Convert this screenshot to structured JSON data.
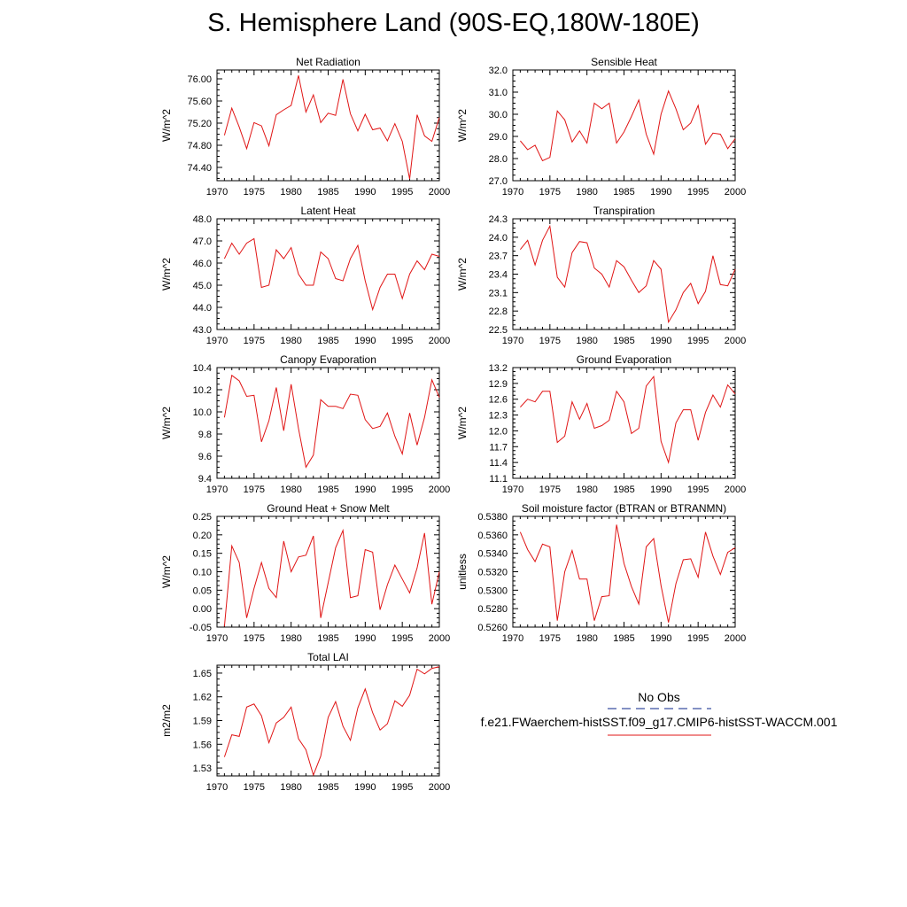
{
  "page": {
    "title": "S. Hemisphere Land (90S-EQ,180W-180E)"
  },
  "legend": {
    "obs_label": "No Obs",
    "case_label": "f.e21.FWaerchem-histSST.f09_g17.CMIP6-histSST-WACCM.001",
    "obs_color": "#3a4fa0",
    "case_color": "#e01515"
  },
  "chart_data": [
    {
      "type": "line",
      "title": "Net Radiation",
      "ylabel": "W/m^2",
      "xlim": [
        1970,
        2000
      ],
      "ylim": [
        74.16,
        76.16
      ],
      "yticks": [
        "74.40",
        "74.80",
        "75.20",
        "75.60",
        "76.00"
      ],
      "xticks": [
        "1970",
        "1975",
        "1980",
        "1985",
        "1990",
        "1995",
        "2000"
      ],
      "series": [
        {
          "x": [
            1971,
            1972,
            1973,
            1974,
            1975,
            1976,
            1977,
            1978,
            1979,
            1980,
            1981,
            1982,
            1983,
            1984,
            1985,
            1986,
            1987,
            1988,
            1989,
            1990,
            1991,
            1992,
            1993,
            1994,
            1995,
            1996,
            1997,
            1998,
            1999,
            2000
          ],
          "values": [
            74.98,
            75.47,
            75.13,
            74.74,
            75.21,
            75.15,
            74.79,
            75.35,
            75.44,
            75.52,
            76.06,
            75.4,
            75.71,
            75.21,
            75.38,
            75.34,
            75.99,
            75.37,
            75.06,
            75.36,
            75.08,
            75.11,
            74.88,
            75.19,
            74.87,
            74.19,
            75.35,
            74.97,
            74.87,
            75.3
          ]
        }
      ]
    },
    {
      "type": "line",
      "title": "Sensible Heat",
      "ylabel": "W/m^2",
      "xlim": [
        1970,
        2000
      ],
      "ylim": [
        27.0,
        32.0
      ],
      "yticks": [
        "27.0",
        "28.0",
        "29.0",
        "30.0",
        "31.0",
        "32.0"
      ],
      "xticks": [
        "1970",
        "1975",
        "1980",
        "1985",
        "1990",
        "1995",
        "2000"
      ],
      "series": [
        {
          "x": [
            1971,
            1972,
            1973,
            1974,
            1975,
            1976,
            1977,
            1978,
            1979,
            1980,
            1981,
            1982,
            1983,
            1984,
            1985,
            1986,
            1987,
            1988,
            1989,
            1990,
            1991,
            1992,
            1993,
            1994,
            1995,
            1996,
            1997,
            1998,
            1999,
            2000
          ],
          "values": [
            28.8,
            28.4,
            28.6,
            27.9,
            28.05,
            30.15,
            29.75,
            28.75,
            29.25,
            28.7,
            30.5,
            30.25,
            30.5,
            28.7,
            29.2,
            29.9,
            30.65,
            29.1,
            28.2,
            30.0,
            31.05,
            30.25,
            29.3,
            29.6,
            30.4,
            28.65,
            29.15,
            29.1,
            28.45,
            28.9
          ]
        }
      ]
    },
    {
      "type": "line",
      "title": "Latent Heat",
      "ylabel": "W/m^2",
      "xlim": [
        1970,
        2000
      ],
      "ylim": [
        43.0,
        48.0
      ],
      "yticks": [
        "43.0",
        "44.0",
        "45.0",
        "46.0",
        "47.0",
        "48.0"
      ],
      "xticks": [
        "1970",
        "1975",
        "1980",
        "1985",
        "1990",
        "1995",
        "2000"
      ],
      "series": [
        {
          "x": [
            1971,
            1972,
            1973,
            1974,
            1975,
            1976,
            1977,
            1978,
            1979,
            1980,
            1981,
            1982,
            1983,
            1984,
            1985,
            1986,
            1987,
            1988,
            1989,
            1990,
            1991,
            1992,
            1993,
            1994,
            1995,
            1996,
            1997,
            1998,
            1999,
            2000
          ],
          "values": [
            46.2,
            46.9,
            46.4,
            46.9,
            47.1,
            44.9,
            45.0,
            46.6,
            46.2,
            46.7,
            45.5,
            45.0,
            45.0,
            46.5,
            46.2,
            45.3,
            45.2,
            46.2,
            46.8,
            45.2,
            43.9,
            44.9,
            45.5,
            45.5,
            44.4,
            45.5,
            46.1,
            45.7,
            46.4,
            46.3
          ]
        }
      ]
    },
    {
      "type": "line",
      "title": "Transpiration",
      "ylabel": "W/m^2",
      "xlim": [
        1970,
        2000
      ],
      "ylim": [
        22.5,
        24.3
      ],
      "yticks": [
        "22.5",
        "22.8",
        "23.1",
        "23.4",
        "23.7",
        "24.0",
        "24.3"
      ],
      "xticks": [
        "1970",
        "1975",
        "1980",
        "1985",
        "1990",
        "1995",
        "2000"
      ],
      "series": [
        {
          "x": [
            1971,
            1972,
            1973,
            1974,
            1975,
            1976,
            1977,
            1978,
            1979,
            1980,
            1981,
            1982,
            1983,
            1984,
            1985,
            1986,
            1987,
            1988,
            1989,
            1990,
            1991,
            1992,
            1993,
            1994,
            1995,
            1996,
            1997,
            1998,
            1999,
            2000
          ],
          "values": [
            23.8,
            23.95,
            23.55,
            23.95,
            24.18,
            23.35,
            23.19,
            23.75,
            23.93,
            23.91,
            23.5,
            23.4,
            23.19,
            23.62,
            23.52,
            23.3,
            23.1,
            23.21,
            23.62,
            23.48,
            22.62,
            22.82,
            23.1,
            23.25,
            22.92,
            23.12,
            23.7,
            23.23,
            23.21,
            23.48
          ]
        }
      ]
    },
    {
      "type": "line",
      "title": "Canopy Evaporation",
      "ylabel": "W/m^2",
      "xlim": [
        1970,
        2000
      ],
      "ylim": [
        9.4,
        10.4
      ],
      "yticks": [
        "9.4",
        "9.6",
        "9.8",
        "10.0",
        "10.2",
        "10.4"
      ],
      "xticks": [
        "1970",
        "1975",
        "1980",
        "1985",
        "1990",
        "1995",
        "2000"
      ],
      "series": [
        {
          "x": [
            1971,
            1972,
            1973,
            1974,
            1975,
            1976,
            1977,
            1978,
            1979,
            1980,
            1981,
            1982,
            1983,
            1984,
            1985,
            1986,
            1987,
            1988,
            1989,
            1990,
            1991,
            1992,
            1993,
            1994,
            1995,
            1996,
            1997,
            1998,
            1999,
            2000
          ],
          "values": [
            9.95,
            10.33,
            10.28,
            10.14,
            10.15,
            9.73,
            9.92,
            10.22,
            9.83,
            10.25,
            9.85,
            9.5,
            9.61,
            10.11,
            10.05,
            10.05,
            10.03,
            10.16,
            10.15,
            9.93,
            9.85,
            9.87,
            9.99,
            9.78,
            9.62,
            9.99,
            9.7,
            9.95,
            10.29,
            10.13
          ]
        }
      ]
    },
    {
      "type": "line",
      "title": "Ground Evaporation",
      "ylabel": "W/m^2",
      "xlim": [
        1970,
        2000
      ],
      "ylim": [
        11.1,
        13.2
      ],
      "yticks": [
        "11.1",
        "11.4",
        "11.7",
        "12.0",
        "12.3",
        "12.6",
        "12.9",
        "13.2"
      ],
      "xticks": [
        "1970",
        "1975",
        "1980",
        "1985",
        "1990",
        "1995",
        "2000"
      ],
      "series": [
        {
          "x": [
            1971,
            1972,
            1973,
            1974,
            1975,
            1976,
            1977,
            1978,
            1979,
            1980,
            1981,
            1982,
            1983,
            1984,
            1985,
            1986,
            1987,
            1988,
            1989,
            1990,
            1991,
            1992,
            1993,
            1994,
            1995,
            1996,
            1997,
            1998,
            1999,
            2000
          ],
          "values": [
            12.45,
            12.6,
            12.55,
            12.75,
            12.75,
            11.78,
            11.9,
            12.55,
            12.22,
            12.52,
            12.05,
            12.1,
            12.2,
            12.75,
            12.55,
            11.95,
            12.05,
            12.85,
            13.03,
            11.8,
            11.4,
            12.15,
            12.4,
            12.4,
            11.82,
            12.35,
            12.68,
            12.45,
            12.87,
            12.7
          ]
        }
      ]
    },
    {
      "type": "line",
      "title": "Ground Heat + Snow Melt",
      "ylabel": "W/m^2",
      "xlim": [
        1970,
        2000
      ],
      "ylim": [
        -0.05,
        0.25
      ],
      "yticks": [
        "-0.05",
        "0.00",
        "0.05",
        "0.10",
        "0.15",
        "0.20",
        "0.25"
      ],
      "xticks": [
        "1970",
        "1975",
        "1980",
        "1985",
        "1990",
        "1995",
        "2000"
      ],
      "series": [
        {
          "x": [
            1971,
            1972,
            1973,
            1974,
            1975,
            1976,
            1977,
            1978,
            1979,
            1980,
            1981,
            1982,
            1983,
            1984,
            1985,
            1986,
            1987,
            1988,
            1989,
            1990,
            1991,
            1992,
            1993,
            1994,
            1995,
            1996,
            1997,
            1998,
            1999,
            2000
          ],
          "values": [
            -0.048,
            0.17,
            0.125,
            -0.025,
            0.055,
            0.125,
            0.055,
            0.03,
            0.183,
            0.1,
            0.14,
            0.145,
            0.197,
            -0.025,
            0.07,
            0.165,
            0.212,
            0.03,
            0.035,
            0.16,
            0.153,
            -0.003,
            0.065,
            0.118,
            0.08,
            0.043,
            0.11,
            0.205,
            0.012,
            0.1
          ]
        }
      ]
    },
    {
      "type": "line",
      "title": "Soil moisture factor (BTRAN or BTRANMN)",
      "ylabel": "unitless",
      "xlim": [
        1970,
        2000
      ],
      "ylim": [
        0.526,
        0.538
      ],
      "yticks": [
        "0.5260",
        "0.5280",
        "0.5300",
        "0.5320",
        "0.5340",
        "0.5360",
        "0.5380"
      ],
      "xticks": [
        "1970",
        "1975",
        "1980",
        "1985",
        "1990",
        "1995",
        "2000"
      ],
      "series": [
        {
          "x": [
            1971,
            1972,
            1973,
            1974,
            1975,
            1976,
            1977,
            1978,
            1979,
            1980,
            1981,
            1982,
            1983,
            1984,
            1985,
            1986,
            1987,
            1988,
            1989,
            1990,
            1991,
            1992,
            1993,
            1994,
            1995,
            1996,
            1997,
            1998,
            1999,
            2000
          ],
          "values": [
            0.5363,
            0.5344,
            0.5331,
            0.535,
            0.5347,
            0.5267,
            0.532,
            0.5343,
            0.5312,
            0.5312,
            0.5267,
            0.5293,
            0.5294,
            0.5371,
            0.5329,
            0.5304,
            0.5285,
            0.5347,
            0.5356,
            0.5305,
            0.5265,
            0.5307,
            0.5333,
            0.5334,
            0.5314,
            0.5363,
            0.5337,
            0.5317,
            0.5341,
            0.5346
          ]
        }
      ]
    },
    {
      "type": "line",
      "title": "Total LAI",
      "ylabel": "m2/m2",
      "xlim": [
        1970,
        2000
      ],
      "ylim": [
        1.52,
        1.66
      ],
      "yticks": [
        "1.53",
        "1.56",
        "1.59",
        "1.62",
        "1.65"
      ],
      "xticks": [
        "1970",
        "1975",
        "1980",
        "1985",
        "1990",
        "1995",
        "2000"
      ],
      "series": [
        {
          "x": [
            1971,
            1972,
            1973,
            1974,
            1975,
            1976,
            1977,
            1978,
            1979,
            1980,
            1981,
            1982,
            1983,
            1984,
            1985,
            1986,
            1987,
            1988,
            1989,
            1990,
            1991,
            1992,
            1993,
            1994,
            1995,
            1996,
            1997,
            1998,
            1999,
            2000
          ],
          "values": [
            1.544,
            1.572,
            1.57,
            1.607,
            1.611,
            1.596,
            1.562,
            1.587,
            1.594,
            1.607,
            1.567,
            1.553,
            1.521,
            1.545,
            1.594,
            1.614,
            1.583,
            1.565,
            1.606,
            1.63,
            1.6,
            1.578,
            1.586,
            1.615,
            1.608,
            1.622,
            1.655,
            1.649,
            1.656,
            1.658
          ]
        }
      ]
    }
  ]
}
